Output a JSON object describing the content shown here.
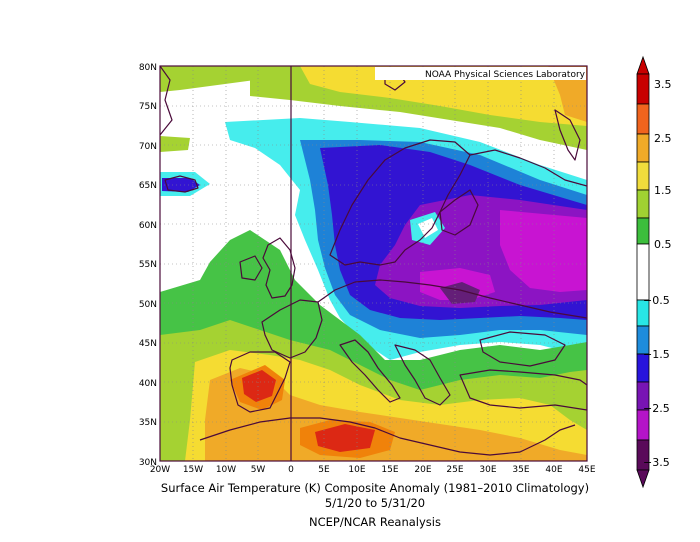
{
  "credit": "NOAA Physical Sciences Laboratory",
  "caption": {
    "line1": "Surface Air Temperature (K) Composite Anomaly (1981–2010 Climatology)",
    "line2": "5/1/20  to 5/31/20",
    "line3": "NCEP/NCAR Reanalysis"
  },
  "map": {
    "lon_range": [
      -20,
      45
    ],
    "lat_range": [
      30,
      80
    ],
    "lon_labels": [
      "20W",
      "15W",
      "10W",
      "5W",
      "0",
      "5E",
      "10E",
      "15E",
      "20E",
      "25E",
      "30E",
      "35E",
      "40E",
      "45E"
    ],
    "lat_labels": [
      "30N",
      "35N",
      "40N",
      "45N",
      "50N",
      "55N",
      "60N",
      "65N",
      "70N",
      "75N",
      "80N"
    ]
  },
  "colorbar": {
    "labels": [
      "3.5",
      "2.5",
      "1.5",
      "0.5",
      "−0.5",
      "−1.5",
      "−2.5",
      "−3.5"
    ],
    "colors": [
      "#c80000",
      "#f0641e",
      "#f0aa28",
      "#f0dc3c",
      "#a0d232",
      "#3cbe3c",
      "#ffffff",
      "#28e6e6",
      "#1e8cdc",
      "#2814dc",
      "#7814b4",
      "#b414c8",
      "#5a0a5a"
    ]
  },
  "anomaly_colors": {
    "red": "#dc2814",
    "orange": "#f0820a",
    "gold": "#fad228",
    "yellow": "#f5dc32",
    "lime": "#a5d232",
    "green": "#46c346",
    "cyan": "#46eded",
    "blue": "#1e82d7",
    "navy": "#3214d2",
    "purple": "#8c14c3",
    "magenta": "#c814d2",
    "darkpurple": "#641e78"
  }
}
